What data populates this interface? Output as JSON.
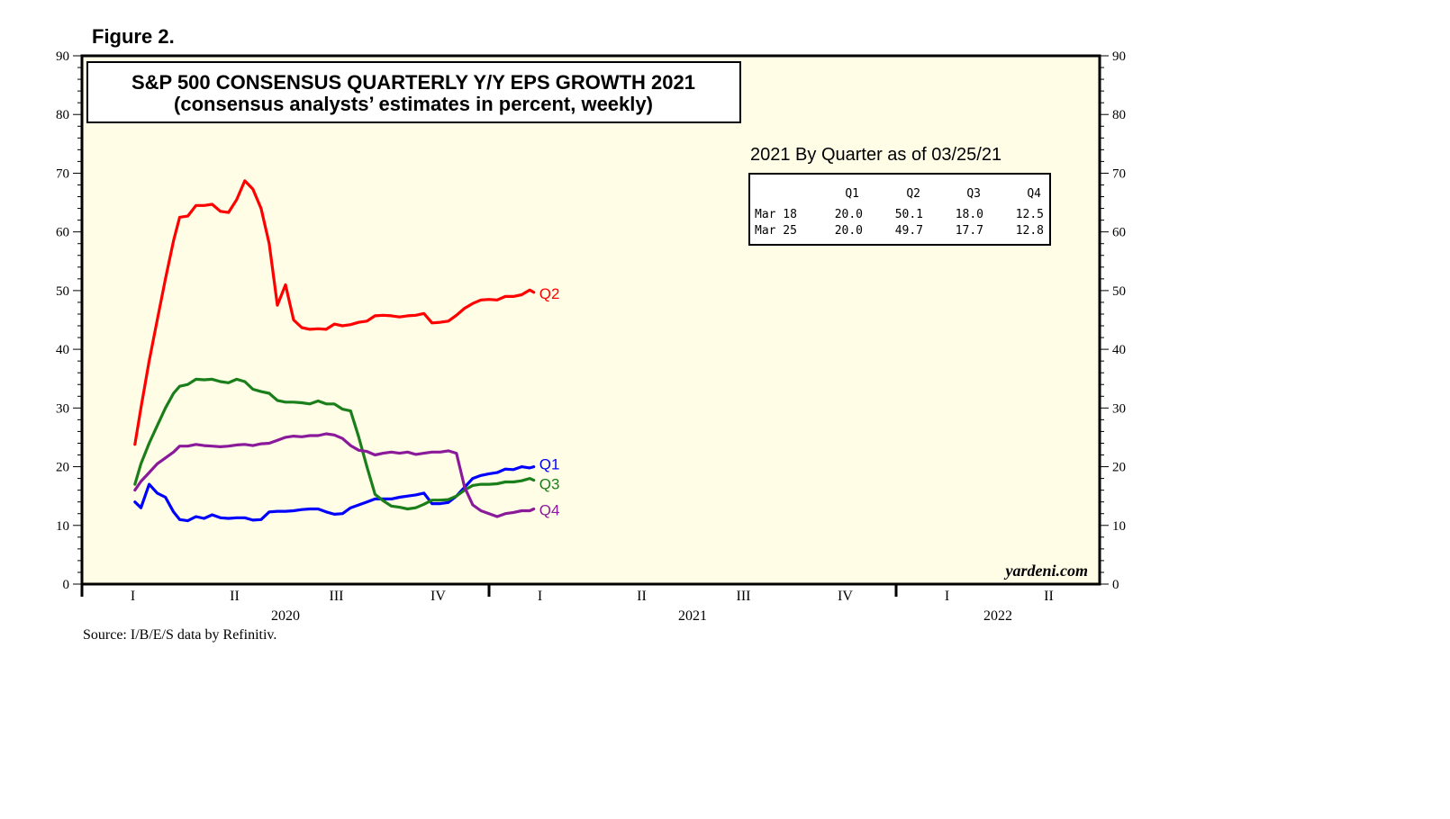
{
  "figure_label": "Figure 2.",
  "source": "Source: I/B/E/S data by Refinitiv.",
  "watermark": "yardeni.com",
  "colors": {
    "plot_bg": "#FFFDE6",
    "Q1": "#0000FF",
    "Q2": "#FF0000",
    "Q3": "#1A7F1A",
    "Q4": "#8B1A9B"
  },
  "chart_data": {
    "type": "line",
    "title": "S&P 500 CONSENSUS QUARTERLY Y/Y EPS GROWTH 2021",
    "subtitle": "(consensus analysts’ estimates in percent, weekly)",
    "ylim": [
      0,
      90
    ],
    "y_ticks": [
      0,
      10,
      20,
      30,
      40,
      50,
      60,
      70,
      80,
      90
    ],
    "xlim": [
      2020.0,
      2022.5
    ],
    "x_quarter_labels": [
      "I",
      "II",
      "III",
      "IV",
      "I",
      "II",
      "III",
      "IV",
      "I",
      "II"
    ],
    "x_year_labels": [
      "2020",
      "2021",
      "2022"
    ],
    "grid": false,
    "series": [
      {
        "name": "Q1",
        "points": [
          [
            2020.13,
            14.0
          ],
          [
            2020.145,
            13.0
          ],
          [
            2020.165,
            17.0
          ],
          [
            2020.185,
            15.5
          ],
          [
            2020.205,
            14.8
          ],
          [
            2020.225,
            12.3
          ],
          [
            2020.24,
            11.0
          ],
          [
            2020.26,
            10.8
          ],
          [
            2020.28,
            11.5
          ],
          [
            2020.3,
            11.2
          ],
          [
            2020.32,
            11.8
          ],
          [
            2020.34,
            11.3
          ],
          [
            2020.36,
            11.2
          ],
          [
            2020.38,
            11.3
          ],
          [
            2020.4,
            11.3
          ],
          [
            2020.42,
            10.9
          ],
          [
            2020.44,
            11.0
          ],
          [
            2020.46,
            12.3
          ],
          [
            2020.48,
            12.4
          ],
          [
            2020.5,
            12.4
          ],
          [
            2020.52,
            12.5
          ],
          [
            2020.54,
            12.7
          ],
          [
            2020.56,
            12.8
          ],
          [
            2020.58,
            12.8
          ],
          [
            2020.6,
            12.3
          ],
          [
            2020.62,
            11.9
          ],
          [
            2020.64,
            12.0
          ],
          [
            2020.66,
            13.0
          ],
          [
            2020.68,
            13.5
          ],
          [
            2020.7,
            14.0
          ],
          [
            2020.72,
            14.5
          ],
          [
            2020.74,
            14.5
          ],
          [
            2020.76,
            14.5
          ],
          [
            2020.78,
            14.8
          ],
          [
            2020.8,
            15.0
          ],
          [
            2020.82,
            15.2
          ],
          [
            2020.84,
            15.5
          ],
          [
            2020.86,
            13.7
          ],
          [
            2020.88,
            13.7
          ],
          [
            2020.9,
            13.9
          ],
          [
            2020.92,
            15.0
          ],
          [
            2020.94,
            16.5
          ],
          [
            2020.96,
            18.0
          ],
          [
            2020.98,
            18.5
          ],
          [
            2021.0,
            18.8
          ],
          [
            2021.02,
            19.0
          ],
          [
            2021.04,
            19.6
          ],
          [
            2021.06,
            19.5
          ],
          [
            2021.08,
            20.0
          ],
          [
            2021.1,
            19.8
          ],
          [
            2021.11,
            20.0
          ]
        ]
      },
      {
        "name": "Q2",
        "points": [
          [
            2020.13,
            23.8
          ],
          [
            2020.145,
            30.0
          ],
          [
            2020.165,
            38.0
          ],
          [
            2020.185,
            45.0
          ],
          [
            2020.205,
            52.0
          ],
          [
            2020.225,
            58.5
          ],
          [
            2020.24,
            62.5
          ],
          [
            2020.26,
            62.7
          ],
          [
            2020.28,
            64.5
          ],
          [
            2020.3,
            64.5
          ],
          [
            2020.32,
            64.7
          ],
          [
            2020.34,
            63.5
          ],
          [
            2020.36,
            63.3
          ],
          [
            2020.38,
            65.5
          ],
          [
            2020.4,
            68.7
          ],
          [
            2020.42,
            67.3
          ],
          [
            2020.44,
            64.0
          ],
          [
            2020.46,
            58.0
          ],
          [
            2020.48,
            47.5
          ],
          [
            2020.5,
            51.0
          ],
          [
            2020.52,
            45.0
          ],
          [
            2020.54,
            43.7
          ],
          [
            2020.56,
            43.4
          ],
          [
            2020.58,
            43.5
          ],
          [
            2020.6,
            43.4
          ],
          [
            2020.62,
            44.3
          ],
          [
            2020.64,
            44.0
          ],
          [
            2020.66,
            44.2
          ],
          [
            2020.68,
            44.6
          ],
          [
            2020.7,
            44.8
          ],
          [
            2020.72,
            45.7
          ],
          [
            2020.74,
            45.8
          ],
          [
            2020.76,
            45.7
          ],
          [
            2020.78,
            45.5
          ],
          [
            2020.8,
            45.7
          ],
          [
            2020.82,
            45.8
          ],
          [
            2020.84,
            46.1
          ],
          [
            2020.86,
            44.5
          ],
          [
            2020.88,
            44.6
          ],
          [
            2020.9,
            44.8
          ],
          [
            2020.92,
            45.8
          ],
          [
            2020.94,
            47.0
          ],
          [
            2020.96,
            47.8
          ],
          [
            2020.98,
            48.4
          ],
          [
            2021.0,
            48.5
          ],
          [
            2021.02,
            48.4
          ],
          [
            2021.04,
            49.0
          ],
          [
            2021.06,
            49.0
          ],
          [
            2021.08,
            49.3
          ],
          [
            2021.1,
            50.1
          ],
          [
            2021.11,
            49.7
          ]
        ]
      },
      {
        "name": "Q3",
        "points": [
          [
            2020.13,
            17.0
          ],
          [
            2020.145,
            20.5
          ],
          [
            2020.165,
            24.0
          ],
          [
            2020.185,
            27.0
          ],
          [
            2020.205,
            30.0
          ],
          [
            2020.225,
            32.5
          ],
          [
            2020.24,
            33.7
          ],
          [
            2020.26,
            34.0
          ],
          [
            2020.28,
            34.9
          ],
          [
            2020.3,
            34.8
          ],
          [
            2020.32,
            34.9
          ],
          [
            2020.34,
            34.5
          ],
          [
            2020.36,
            34.3
          ],
          [
            2020.38,
            34.9
          ],
          [
            2020.4,
            34.5
          ],
          [
            2020.42,
            33.2
          ],
          [
            2020.44,
            32.8
          ],
          [
            2020.46,
            32.5
          ],
          [
            2020.48,
            31.3
          ],
          [
            2020.5,
            31.0
          ],
          [
            2020.52,
            31.0
          ],
          [
            2020.54,
            30.9
          ],
          [
            2020.56,
            30.7
          ],
          [
            2020.58,
            31.2
          ],
          [
            2020.6,
            30.7
          ],
          [
            2020.62,
            30.7
          ],
          [
            2020.64,
            29.8
          ],
          [
            2020.66,
            29.5
          ],
          [
            2020.68,
            25.0
          ],
          [
            2020.7,
            20.0
          ],
          [
            2020.72,
            15.3
          ],
          [
            2020.74,
            14.2
          ],
          [
            2020.76,
            13.3
          ],
          [
            2020.78,
            13.1
          ],
          [
            2020.8,
            12.8
          ],
          [
            2020.82,
            13.0
          ],
          [
            2020.84,
            13.6
          ],
          [
            2020.86,
            14.3
          ],
          [
            2020.88,
            14.3
          ],
          [
            2020.9,
            14.4
          ],
          [
            2020.92,
            15.0
          ],
          [
            2020.94,
            16.0
          ],
          [
            2020.96,
            16.8
          ],
          [
            2020.98,
            17.0
          ],
          [
            2021.0,
            17.0
          ],
          [
            2021.02,
            17.1
          ],
          [
            2021.04,
            17.4
          ],
          [
            2021.06,
            17.4
          ],
          [
            2021.08,
            17.6
          ],
          [
            2021.1,
            18.0
          ],
          [
            2021.11,
            17.7
          ]
        ]
      },
      {
        "name": "Q4",
        "points": [
          [
            2020.13,
            16.0
          ],
          [
            2020.145,
            17.5
          ],
          [
            2020.165,
            19.0
          ],
          [
            2020.185,
            20.5
          ],
          [
            2020.205,
            21.5
          ],
          [
            2020.225,
            22.5
          ],
          [
            2020.24,
            23.5
          ],
          [
            2020.26,
            23.5
          ],
          [
            2020.28,
            23.8
          ],
          [
            2020.3,
            23.6
          ],
          [
            2020.32,
            23.5
          ],
          [
            2020.34,
            23.4
          ],
          [
            2020.36,
            23.5
          ],
          [
            2020.38,
            23.7
          ],
          [
            2020.4,
            23.8
          ],
          [
            2020.42,
            23.6
          ],
          [
            2020.44,
            23.9
          ],
          [
            2020.46,
            24.0
          ],
          [
            2020.48,
            24.5
          ],
          [
            2020.5,
            25.0
          ],
          [
            2020.52,
            25.2
          ],
          [
            2020.54,
            25.1
          ],
          [
            2020.56,
            25.3
          ],
          [
            2020.58,
            25.3
          ],
          [
            2020.6,
            25.6
          ],
          [
            2020.62,
            25.4
          ],
          [
            2020.64,
            24.8
          ],
          [
            2020.66,
            23.6
          ],
          [
            2020.68,
            22.8
          ],
          [
            2020.7,
            22.6
          ],
          [
            2020.72,
            22.0
          ],
          [
            2020.74,
            22.3
          ],
          [
            2020.76,
            22.5
          ],
          [
            2020.78,
            22.3
          ],
          [
            2020.8,
            22.5
          ],
          [
            2020.82,
            22.1
          ],
          [
            2020.84,
            22.3
          ],
          [
            2020.86,
            22.5
          ],
          [
            2020.88,
            22.5
          ],
          [
            2020.9,
            22.7
          ],
          [
            2020.92,
            22.3
          ],
          [
            2020.94,
            16.5
          ],
          [
            2020.96,
            13.5
          ],
          [
            2020.98,
            12.5
          ],
          [
            2021.0,
            12.0
          ],
          [
            2021.02,
            11.5
          ],
          [
            2021.04,
            12.0
          ],
          [
            2021.06,
            12.2
          ],
          [
            2021.08,
            12.5
          ],
          [
            2021.1,
            12.5
          ],
          [
            2021.11,
            12.8
          ]
        ]
      }
    ],
    "inset_table": {
      "title": "2021 By Quarter as of 03/25/21",
      "columns": [
        "Q1",
        "Q2",
        "Q3",
        "Q4"
      ],
      "rows": [
        {
          "label": "Mar 18",
          "values": [
            "20.0",
            "50.1",
            "18.0",
            "12.5"
          ]
        },
        {
          "label": "Mar 25",
          "values": [
            "20.0",
            "49.7",
            "17.7",
            "12.8"
          ]
        }
      ]
    }
  }
}
